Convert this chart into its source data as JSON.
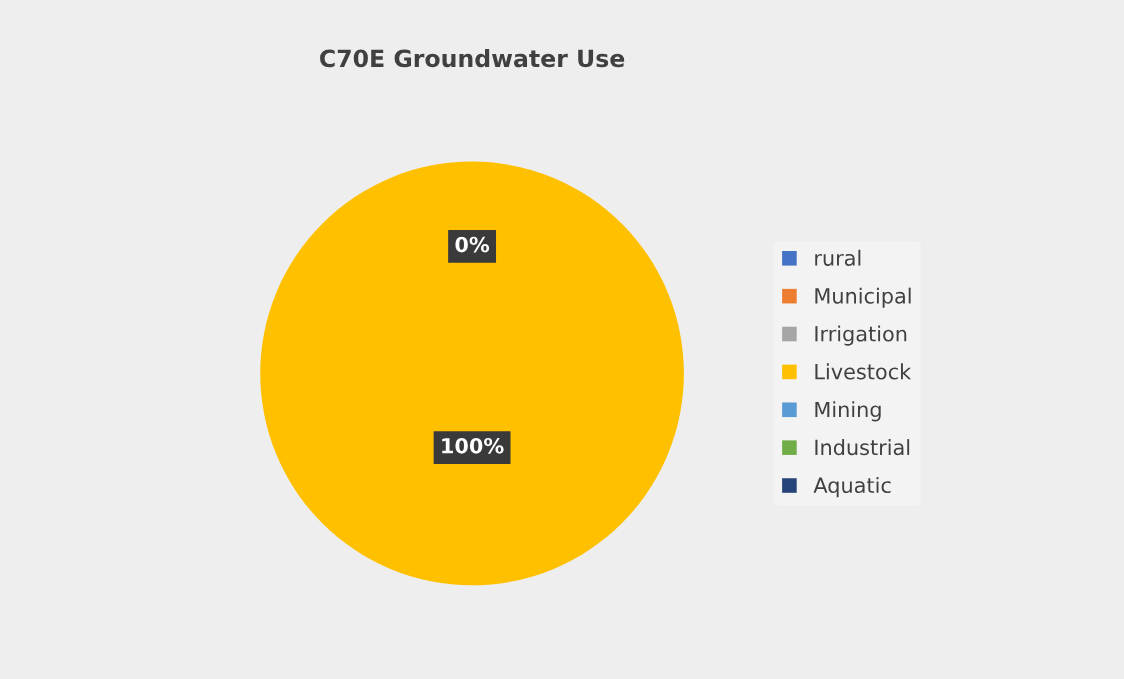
{
  "chart_data": {
    "type": "pie",
    "title": "C70E Groundwater Use",
    "categories": [
      "rural",
      "Municipal",
      "Irrigation",
      "Livestock",
      "Mining",
      "Industrial",
      "Aquatic"
    ],
    "values": [
      0,
      0,
      0,
      100,
      0,
      0,
      0
    ],
    "colors": [
      "#4472c4",
      "#ed7d31",
      "#a5a5a5",
      "#ffc000",
      "#5b9bd5",
      "#70ad47",
      "#264478"
    ],
    "value_labels": [
      "0%",
      null,
      null,
      "100%",
      null,
      null,
      null
    ],
    "legend": "right"
  }
}
